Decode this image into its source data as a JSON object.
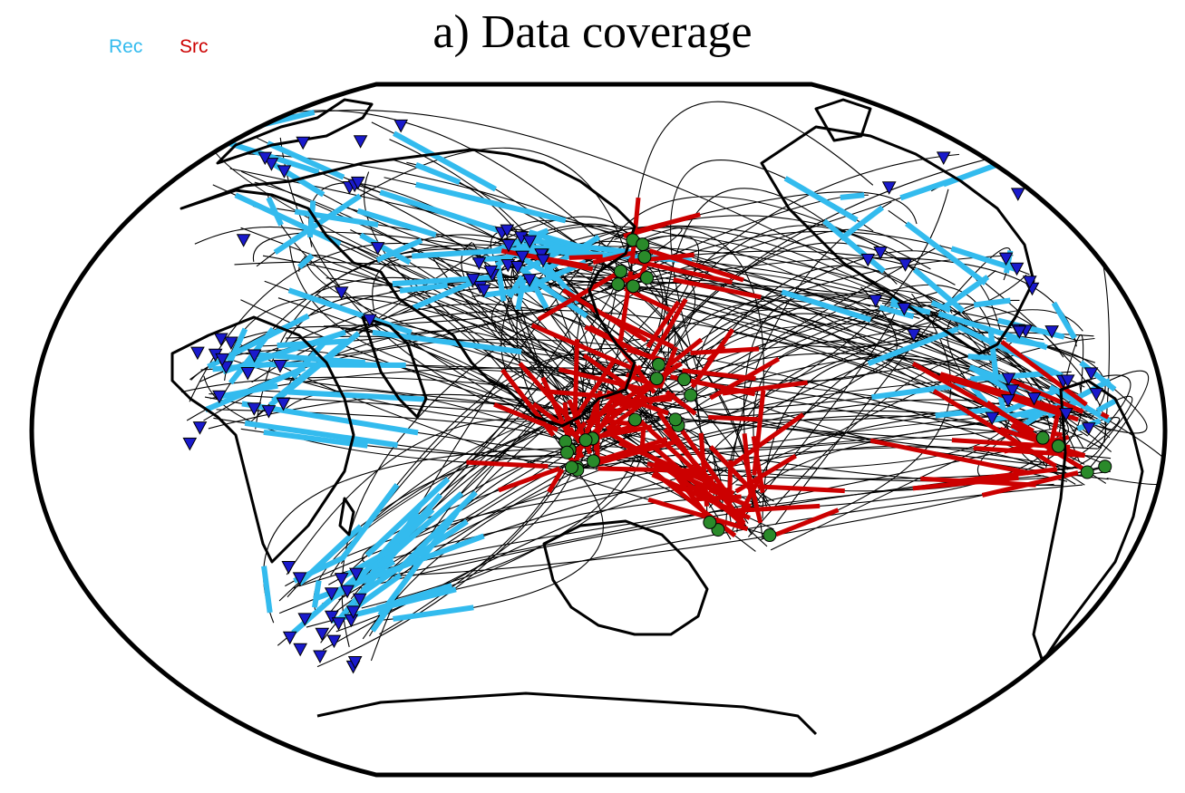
{
  "title": "a) Data coverage",
  "legend": [
    {
      "label": "Rec",
      "color": "#33bbee"
    },
    {
      "label": "Src",
      "color": "#cc0000"
    }
  ],
  "colors": {
    "ray": "#000000",
    "coast": "#000000",
    "receiver_fill": "#1a1acc",
    "source_fill": "#2a8a2a"
  },
  "map_meta": {
    "projection": "Winkel-style ellipse with flattened top/bottom",
    "receiver_symbol": "triangle-down-icon",
    "source_symbol": "circle-icon"
  }
}
